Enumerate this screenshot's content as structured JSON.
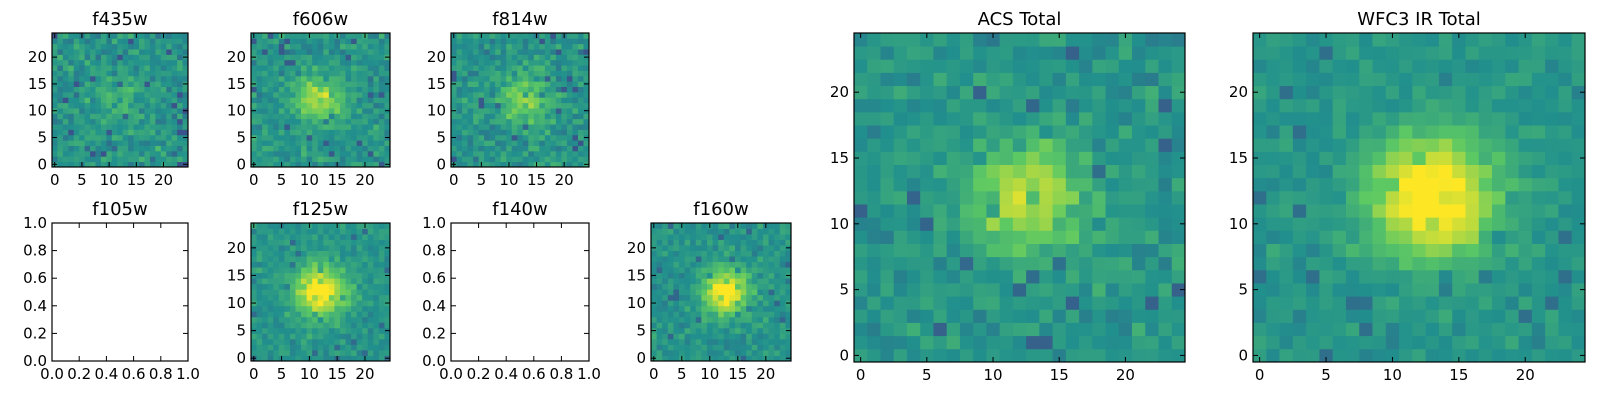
{
  "figure": {
    "colormap": "viridis",
    "colormap_stops": [
      "#440154",
      "#3b528b",
      "#21908d",
      "#5dc963",
      "#fde725"
    ],
    "background": "#ffffff"
  },
  "chart_data": [
    {
      "type": "heatmap",
      "title": "f435w",
      "grid": [
        25,
        25
      ],
      "xlim": [
        -0.5,
        24.5
      ],
      "ylim": [
        -0.5,
        24.5
      ],
      "xticks": [
        0,
        5,
        10,
        15,
        20
      ],
      "yticks": [
        0,
        5,
        10,
        15,
        20
      ],
      "source_center": [
        12,
        12
      ],
      "source_sigma": 3.5,
      "source_amplitude": 0.12,
      "noise_level": 0.38,
      "empty": false
    },
    {
      "type": "heatmap",
      "title": "f606w",
      "grid": [
        25,
        25
      ],
      "xlim": [
        -0.5,
        24.5
      ],
      "ylim": [
        -0.5,
        24.5
      ],
      "xticks": [
        0,
        5,
        10,
        15,
        20
      ],
      "yticks": [
        0,
        5,
        10,
        15,
        20
      ],
      "source_center": [
        12,
        12
      ],
      "source_sigma": 3,
      "source_amplitude": 0.35,
      "noise_level": 0.34,
      "empty": false
    },
    {
      "type": "heatmap",
      "title": "f814w",
      "grid": [
        25,
        25
      ],
      "xlim": [
        -0.5,
        24.5
      ],
      "ylim": [
        -0.5,
        24.5
      ],
      "xticks": [
        0,
        5,
        10,
        15,
        20
      ],
      "yticks": [
        0,
        5,
        10,
        15,
        20
      ],
      "source_center": [
        13,
        12
      ],
      "source_sigma": 3,
      "source_amplitude": 0.3,
      "noise_level": 0.36,
      "empty": false
    },
    {
      "type": "heatmap",
      "title": "f105w",
      "xlim": [
        0,
        1
      ],
      "ylim": [
        0,
        1
      ],
      "xticks": [
        0.0,
        0.2,
        0.4,
        0.6,
        0.8,
        1.0
      ],
      "yticks": [
        0.0,
        0.2,
        0.4,
        0.6,
        0.8,
        1.0
      ],
      "empty": true
    },
    {
      "type": "heatmap",
      "title": "f125w",
      "grid": [
        25,
        25
      ],
      "xlim": [
        -0.5,
        24.5
      ],
      "ylim": [
        -0.5,
        24.5
      ],
      "xticks": [
        0,
        5,
        10,
        15,
        20
      ],
      "yticks": [
        0,
        5,
        10,
        15,
        20
      ],
      "source_center": [
        12,
        12
      ],
      "source_sigma": 3.2,
      "source_amplitude": 0.55,
      "noise_level": 0.25,
      "empty": false
    },
    {
      "type": "heatmap",
      "title": "f140w",
      "xlim": [
        0,
        1
      ],
      "ylim": [
        0,
        1
      ],
      "xticks": [
        0.0,
        0.2,
        0.4,
        0.6,
        0.8,
        1.0
      ],
      "yticks": [
        0.0,
        0.2,
        0.4,
        0.6,
        0.8,
        1.0
      ],
      "empty": true
    },
    {
      "type": "heatmap",
      "title": "f160w",
      "grid": [
        25,
        25
      ],
      "xlim": [
        -0.5,
        24.5
      ],
      "ylim": [
        -0.5,
        24.5
      ],
      "xticks": [
        0,
        5,
        10,
        15,
        20
      ],
      "yticks": [
        0,
        5,
        10,
        15,
        20
      ],
      "source_center": [
        13,
        12
      ],
      "source_sigma": 2.8,
      "source_amplitude": 0.55,
      "noise_level": 0.27,
      "empty": false
    },
    {
      "type": "heatmap",
      "title": "ACS Total",
      "grid": [
        25,
        25
      ],
      "xlim": [
        -0.5,
        24.5
      ],
      "ylim": [
        -0.5,
        24.5
      ],
      "xticks": [
        0,
        5,
        10,
        15,
        20
      ],
      "yticks": [
        0,
        5,
        10,
        15,
        20
      ],
      "source_center": [
        12.5,
        12
      ],
      "source_sigma": 3,
      "source_amplitude": 0.38,
      "noise_level": 0.3,
      "empty": false
    },
    {
      "type": "heatmap",
      "title": "WFC3 IR Total",
      "grid": [
        25,
        25
      ],
      "xlim": [
        -0.5,
        24.5
      ],
      "ylim": [
        -0.5,
        24.5
      ],
      "xticks": [
        0,
        5,
        10,
        15,
        20
      ],
      "yticks": [
        0,
        5,
        10,
        15,
        20
      ],
      "source_center": [
        13,
        12
      ],
      "source_sigma": 3.3,
      "source_amplitude": 0.6,
      "noise_level": 0.22,
      "empty": false
    }
  ]
}
